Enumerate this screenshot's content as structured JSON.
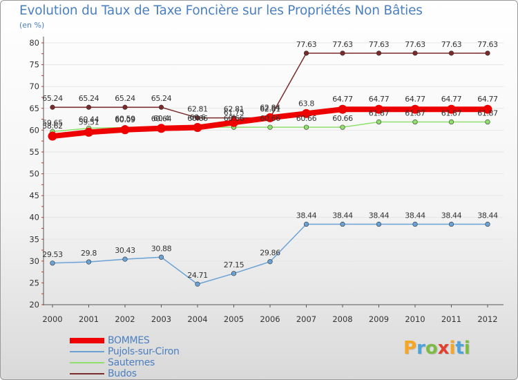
{
  "title": "Evolution du Taux de Taxe Foncière sur les Propriétés Non Bâties",
  "unit": "(en %)",
  "logo": {
    "text": "Proxiti",
    "letters": [
      {
        "ch": "P",
        "color": "#f6a623"
      },
      {
        "ch": "r",
        "color": "#4da3d9"
      },
      {
        "ch": "o",
        "color": "#7dbb45"
      },
      {
        "ch": "x",
        "color": "#e0402c"
      },
      {
        "ch": "i",
        "color": "#f6a623"
      },
      {
        "ch": "t",
        "color": "#4da3d9"
      },
      {
        "ch": "i",
        "color": "#7dbb45"
      }
    ]
  },
  "chart_data": {
    "type": "line",
    "title": "Evolution du Taux de Taxe Foncière sur les Propriétés Non Bâties",
    "ylabel": "(en %)",
    "xlabel": "",
    "ylim": [
      20,
      80
    ],
    "yticks": [
      20,
      25,
      30,
      35,
      40,
      45,
      50,
      55,
      60,
      65,
      70,
      75,
      80
    ],
    "categories": [
      "2000",
      "2001",
      "2002",
      "2003",
      "2004",
      "2005",
      "2006",
      "2007",
      "2008",
      "2009",
      "2010",
      "2011",
      "2012"
    ],
    "series": [
      {
        "name": "BOMMES",
        "color": "#ee0000",
        "values": [
          58.62,
          59.51,
          60.09,
          60.4,
          60.6,
          61.75,
          62.84,
          63.8,
          64.77,
          64.77,
          64.77,
          64.77,
          64.77
        ],
        "labels": [
          "58.62",
          "59.51",
          "60.09",
          "60.4",
          "60.6",
          "61.75",
          "62.84",
          "63.8",
          "64.77",
          "64.77",
          "64.77",
          "64.77",
          "64.77"
        ]
      },
      {
        "name": "Pujols-sur-Ciron",
        "color": "#6aa2d6",
        "values": [
          29.53,
          29.8,
          30.43,
          30.88,
          24.71,
          27.15,
          29.86,
          38.44,
          38.44,
          38.44,
          38.44,
          38.44,
          38.44
        ],
        "labels": [
          "29.53",
          "29.8",
          "30.43",
          "30.88",
          "24.71",
          "27.15",
          "29.86",
          "38.44",
          "38.44",
          "38.44",
          "38.44",
          "38.44",
          "38.44"
        ]
      },
      {
        "name": "Sauternes",
        "color": "#8fe06a",
        "values": [
          59.65,
          60.44,
          60.59,
          60.64,
          60.66,
          60.66,
          60.66,
          60.66,
          60.66,
          61.87,
          61.87,
          61.87,
          61.87
        ],
        "labels": [
          "59.65",
          "60.44",
          "60.59",
          "60.64",
          "60.66",
          "60.66",
          "60.66",
          "60.66",
          "60.66",
          "61.87",
          "61.87",
          "61.87",
          "61.87"
        ]
      },
      {
        "name": "Budos",
        "color": "#7a2a2a",
        "values": [
          65.24,
          65.24,
          65.24,
          65.24,
          62.81,
          62.81,
          62.81,
          77.63,
          77.63,
          77.63,
          77.63,
          77.63,
          77.63
        ],
        "labels": [
          "65.24",
          "65.24",
          "65.24",
          "65.24",
          "62.81",
          "62.81",
          "62.81",
          "77.63",
          "77.63",
          "77.63",
          "77.63",
          "77.63",
          "77.63"
        ]
      }
    ],
    "grid": "horizontal",
    "legend": "bottom-left"
  }
}
